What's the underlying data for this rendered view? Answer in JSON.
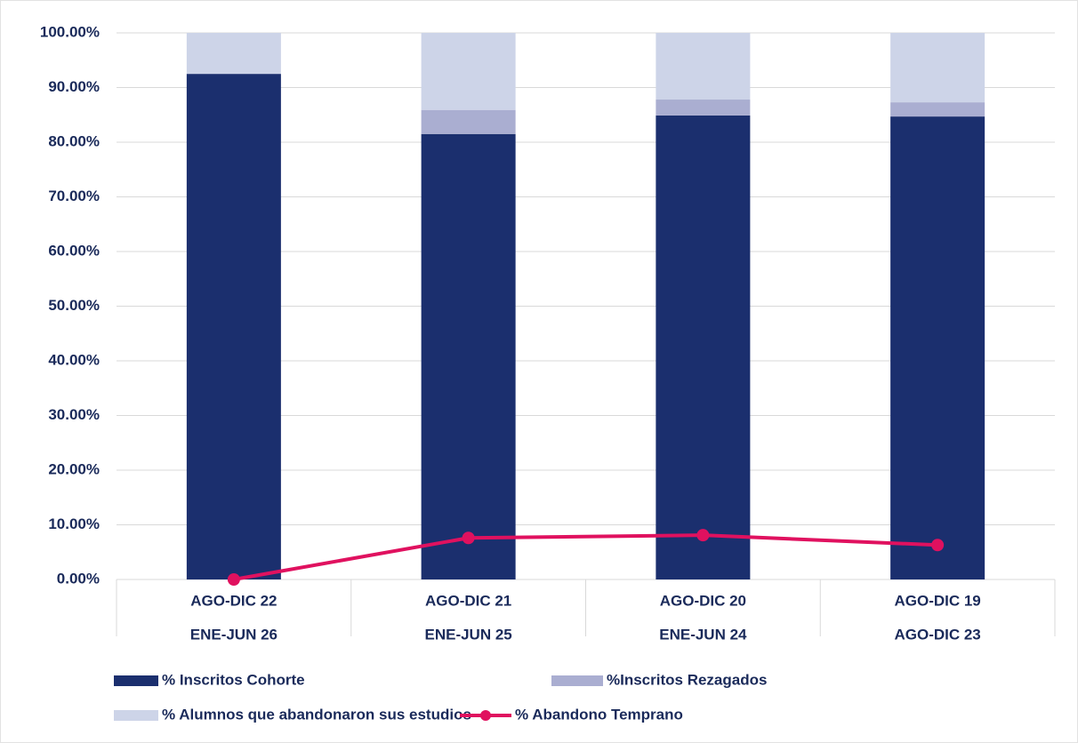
{
  "chart_data": {
    "type": "bar",
    "stacked": true,
    "categories": [
      [
        "AGO-DIC 22",
        "ENE-JUN 26"
      ],
      [
        "AGO-DIC 21",
        "ENE-JUN 25"
      ],
      [
        "AGO-DIC 20",
        "ENE-JUN 24"
      ],
      [
        "AGO-DIC 19",
        "AGO-DIC 23"
      ]
    ],
    "series": [
      {
        "name": "% Inscritos Cohorte",
        "color": "#1b2f6e",
        "values": [
          92.5,
          81.5,
          84.9,
          84.7
        ]
      },
      {
        "name": "%Inscritos Rezagados",
        "color": "#aaaed1",
        "values": [
          0,
          4.4,
          2.9,
          2.6
        ]
      },
      {
        "name": "% Alumnos que abandonaron sus estudios",
        "color": "#cdd4e8",
        "values": [
          7.5,
          14.1,
          12.2,
          12.7
        ]
      },
      {
        "name": "% Abandono Temprano",
        "color": "#e0115f",
        "type": "line",
        "values": [
          0,
          7.6,
          8.1,
          6.3
        ]
      }
    ],
    "ylim": [
      0,
      100
    ],
    "yticks": [
      {
        "value": 0,
        "label": "0.00%"
      },
      {
        "value": 10,
        "label": "10.00%"
      },
      {
        "value": 20,
        "label": "20.00%"
      },
      {
        "value": 30,
        "label": "30.00%"
      },
      {
        "value": 40,
        "label": "40.00%"
      },
      {
        "value": 50,
        "label": "50.00%"
      },
      {
        "value": 60,
        "label": "60.00%"
      },
      {
        "value": 70,
        "label": "70.00%"
      },
      {
        "value": 80,
        "label": "80.00%"
      },
      {
        "value": 90,
        "label": "90.00%"
      },
      {
        "value": 100,
        "label": "100.00%"
      }
    ],
    "grid": true,
    "legend": "bottom"
  }
}
